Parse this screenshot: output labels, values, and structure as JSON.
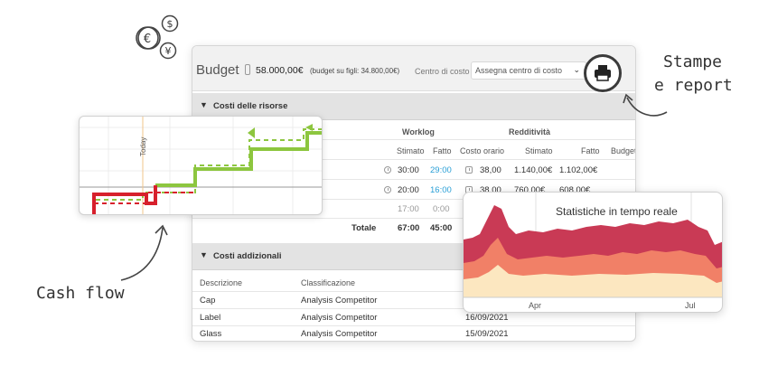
{
  "header": {
    "title": "Budget",
    "amount": "58.000,00€",
    "note": "(budget su figli: 34.800,00€)",
    "cost_center_label": "Centro di costo",
    "cost_center_value": "Assegna centro di costo"
  },
  "resources": {
    "section_label": "Costi delle risorse",
    "group_worklog": "Worklog",
    "group_redditivita": "Redditività",
    "columns": [
      "Stimato",
      "Fatto",
      "Costo orario",
      "Stimato",
      "Fatto",
      "Budget"
    ],
    "rows": [
      {
        "stimato": "30:00",
        "fatto": "29:00",
        "costo": "38,00",
        "r_stimato": "1.140,00€",
        "r_fatto": "1.102,00€"
      },
      {
        "stimato": "20:00",
        "fatto": "16:00",
        "costo": "38,00",
        "r_stimato": "760,00€",
        "r_fatto": "608,00€"
      },
      {
        "stimato": "17:00",
        "fatto": "0:00",
        "costo": "",
        "r_stimato": "",
        "r_fatto": ""
      }
    ],
    "total_label": "Totale",
    "total_stimato": "67:00",
    "total_fatto": "45:00"
  },
  "additional": {
    "section_label": "Costi addizionali",
    "columns": [
      "Descrizione",
      "Classificazione"
    ],
    "rows": [
      {
        "descrizione": "Cap",
        "classificazione": "Analysis Competitor",
        "data": ""
      },
      {
        "descrizione": "Label",
        "classificazione": "Analysis Competitor",
        "data": "16/09/2021"
      },
      {
        "descrizione": "Glass",
        "classificazione": "Analysis Competitor",
        "data": "15/09/2021"
      }
    ]
  },
  "cash_flow": {
    "today_label": "Today",
    "caption": "Cash flow"
  },
  "stats": {
    "title": "Statistiche in tempo reale",
    "x_ticks": [
      "Apr",
      "Jul"
    ]
  },
  "print": {
    "caption_line1": "Stampe",
    "caption_line2": "e report"
  },
  "colors": {
    "green": "#8dc63f",
    "red": "#d7202c",
    "stats_dark": "#c93a55",
    "stats_mid": "#f18067",
    "stats_light": "#fce7c0"
  }
}
